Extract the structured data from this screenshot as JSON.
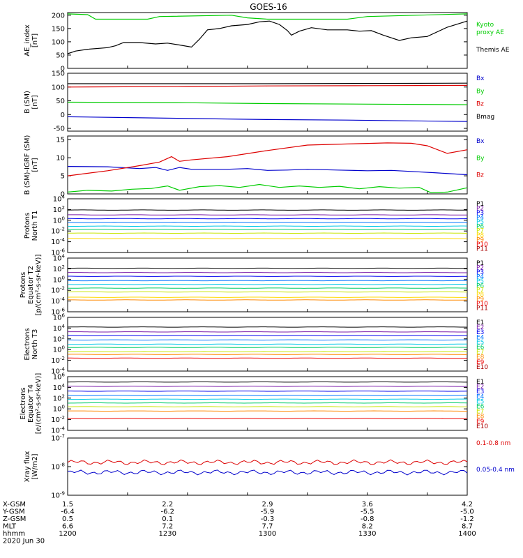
{
  "figure": {
    "title": "GOES-16",
    "date_label": "2020 Jun 30"
  },
  "colors": {
    "P1": "#000000",
    "P2": "#7a1aa8",
    "P3": "#0000ee",
    "P4": "#0077ff",
    "P5": "#00c8e6",
    "P6": "#00cc66",
    "P7": "#c8e600",
    "P8": "#ffd800",
    "P9": "#ff8800",
    "P10": "#ee0000",
    "P11": "#aa0000"
  },
  "chart_data": [
    {
      "type": "line",
      "panel": "ae",
      "ylabel": "AE_index\n[nT]",
      "ylim": [
        0,
        210
      ],
      "yticks": [
        0,
        50,
        100,
        150,
        200
      ],
      "x": [
        1200,
        1400
      ],
      "series": [
        {
          "name": "Kyoto\nproxy AE",
          "color": "#00cc00",
          "points": [
            [
              1200,
              205
            ],
            [
              1210,
              202
            ],
            [
              1214,
              185
            ],
            [
              1240,
              185
            ],
            [
              1246,
              195
            ],
            [
              1282,
              200
            ],
            [
              1290,
              190
            ],
            [
              1300,
              185
            ],
            [
              1340,
              185
            ],
            [
              1350,
              195
            ],
            [
              1375,
              200
            ],
            [
              1400,
              205
            ]
          ]
        },
        {
          "name": "Themis AE",
          "color": "#000000",
          "points": [
            [
              1200,
              55
            ],
            [
              1204,
              65
            ],
            [
              1210,
              72
            ],
            [
              1220,
              78
            ],
            [
              1224,
              85
            ],
            [
              1228,
              97
            ],
            [
              1236,
              97
            ],
            [
              1244,
              92
            ],
            [
              1250,
              95
            ],
            [
              1256,
              88
            ],
            [
              1262,
              80
            ],
            [
              1266,
              110
            ],
            [
              1270,
              145
            ],
            [
              1276,
              150
            ],
            [
              1282,
              160
            ],
            [
              1290,
              165
            ],
            [
              1296,
              175
            ],
            [
              1301,
              178
            ],
            [
              1306,
              165
            ],
            [
              1310,
              142
            ],
            [
              1312,
              125
            ],
            [
              1316,
              140
            ],
            [
              1322,
              153
            ],
            [
              1330,
              145
            ],
            [
              1340,
              145
            ],
            [
              1346,
              140
            ],
            [
              1352,
              142
            ],
            [
              1358,
              125
            ],
            [
              1362,
              115
            ],
            [
              1366,
              105
            ],
            [
              1372,
              115
            ],
            [
              1380,
              120
            ],
            [
              1390,
              155
            ],
            [
              1400,
              178
            ]
          ]
        }
      ]
    },
    {
      "type": "line",
      "panel": "b",
      "ylabel": "B (SM)\n[nT]",
      "ylim": [
        -60,
        150
      ],
      "yticks": [
        -50,
        0,
        50,
        100,
        150
      ],
      "x": [
        1200,
        1400
      ],
      "series": [
        {
          "name": "Bx",
          "color": "#0000cc",
          "points": [
            [
              1200,
              -8
            ],
            [
              1240,
              -12
            ],
            [
              1300,
              -18
            ],
            [
              1340,
              -20
            ],
            [
              1400,
              -25
            ]
          ]
        },
        {
          "name": "By",
          "color": "#00cc00",
          "points": [
            [
              1200,
              45
            ],
            [
              1260,
              43
            ],
            [
              1300,
              40
            ],
            [
              1350,
              38
            ],
            [
              1400,
              36
            ]
          ]
        },
        {
          "name": "Bz",
          "color": "#dd0000",
          "points": [
            [
              1200,
              100
            ],
            [
              1260,
              102
            ],
            [
              1300,
              104
            ],
            [
              1350,
              105
            ],
            [
              1400,
              106
            ]
          ]
        },
        {
          "name": "Bmag",
          "color": "#000000",
          "points": [
            [
              1200,
              112
            ],
            [
              1260,
              112
            ],
            [
              1300,
              112
            ],
            [
              1350,
              113
            ],
            [
              1400,
              114
            ]
          ]
        }
      ]
    },
    {
      "type": "line",
      "panel": "bdiff",
      "ylabel": "B (SM)-IGRF (SM)\n[nT]",
      "ylim": [
        0,
        16
      ],
      "yticks": [
        0,
        5,
        10,
        15
      ],
      "x": [
        1200,
        1400
      ],
      "series": [
        {
          "name": "Bx",
          "color": "#0000cc",
          "points": [
            [
              1200,
              7.6
            ],
            [
              1220,
              7.5
            ],
            [
              1236,
              7.0
            ],
            [
              1244,
              7.3
            ],
            [
              1250,
              6.5
            ],
            [
              1256,
              7.3
            ],
            [
              1262,
              6.8
            ],
            [
              1280,
              6.8
            ],
            [
              1290,
              7.0
            ],
            [
              1300,
              6.5
            ],
            [
              1310,
              6.6
            ],
            [
              1320,
              6.8
            ],
            [
              1335,
              6.6
            ],
            [
              1350,
              6.4
            ],
            [
              1362,
              6.5
            ],
            [
              1372,
              6.2
            ],
            [
              1385,
              5.8
            ],
            [
              1400,
              5.3
            ]
          ]
        },
        {
          "name": "By",
          "color": "#00cc00",
          "points": [
            [
              1200,
              0.5
            ],
            [
              1210,
              1.0
            ],
            [
              1222,
              0.8
            ],
            [
              1232,
              1.3
            ],
            [
              1242,
              1.5
            ],
            [
              1250,
              2.2
            ],
            [
              1256,
              1.0
            ],
            [
              1266,
              2.0
            ],
            [
              1276,
              2.3
            ],
            [
              1286,
              1.8
            ],
            [
              1296,
              2.6
            ],
            [
              1306,
              1.8
            ],
            [
              1316,
              2.2
            ],
            [
              1326,
              1.8
            ],
            [
              1336,
              2.1
            ],
            [
              1346,
              1.4
            ],
            [
              1356,
              2.0
            ],
            [
              1366,
              1.6
            ],
            [
              1376,
              1.8
            ],
            [
              1382,
              0.3
            ],
            [
              1390,
              0.5
            ],
            [
              1400,
              1.7
            ]
          ]
        },
        {
          "name": "Bz",
          "color": "#dd0000",
          "points": [
            [
              1200,
              5.0
            ],
            [
              1220,
              6.4
            ],
            [
              1236,
              7.8
            ],
            [
              1246,
              8.8
            ],
            [
              1252,
              10.3
            ],
            [
              1256,
              9.0
            ],
            [
              1262,
              9.4
            ],
            [
              1280,
              10.3
            ],
            [
              1300,
              12.0
            ],
            [
              1320,
              13.5
            ],
            [
              1340,
              13.8
            ],
            [
              1360,
              14.1
            ],
            [
              1372,
              14.0
            ],
            [
              1380,
              13.3
            ],
            [
              1390,
              11.2
            ],
            [
              1400,
              12.2
            ]
          ]
        }
      ]
    },
    {
      "type": "line",
      "panel": "prot_t1",
      "ylabel": "Protons\nNorth T1",
      "yscale": "log",
      "ylim": [
        -6,
        4
      ],
      "yticks": [
        4,
        2,
        0,
        -2,
        -4,
        -6
      ],
      "x": [
        1200,
        1400
      ],
      "series": [
        {
          "name": "P1",
          "color": "#000000",
          "levels": [
            1.9
          ]
        },
        {
          "name": "P2",
          "color": "#7a1aa8",
          "levels": [
            1.0
          ]
        },
        {
          "name": "P3",
          "color": "#0000ee",
          "levels": [
            0.3
          ]
        },
        {
          "name": "P4",
          "color": "#0077ff",
          "levels": [
            -0.4
          ]
        },
        {
          "name": "P5",
          "color": "#00c8e6",
          "levels": [
            -1.1
          ]
        },
        {
          "name": "P6",
          "color": "#00cc66",
          "levels": [
            -1.7
          ]
        },
        {
          "name": "P7",
          "color": "#c8e600",
          "levels": [
            -2.4
          ]
        },
        {
          "name": "P8",
          "color": "#ffd800",
          "levels": [
            -3.4
          ]
        },
        {
          "name": "P9",
          "color": "#ff8800"
        },
        {
          "name": "P10",
          "color": "#ee0000"
        },
        {
          "name": "P11",
          "color": "#aa0000"
        }
      ]
    },
    {
      "type": "line",
      "panel": "prot_t2",
      "ylabel": "Protons\nEquator T2\n[p/(cm²-s-sr-keV)]",
      "yscale": "log",
      "ylim": [
        -6,
        4
      ],
      "yticks": [
        4,
        2,
        0,
        -2,
        -4,
        -6
      ],
      "x": [
        1200,
        1400
      ],
      "series": [
        {
          "name": "P1",
          "color": "#000000",
          "levels": [
            2.1
          ]
        },
        {
          "name": "P2",
          "color": "#7a1aa8",
          "levels": [
            1.3
          ]
        },
        {
          "name": "P3",
          "color": "#0000ee",
          "levels": [
            0.6
          ]
        },
        {
          "name": "P4",
          "color": "#0077ff",
          "levels": [
            -0.2
          ]
        },
        {
          "name": "P5",
          "color": "#00c8e6",
          "levels": [
            -0.9
          ]
        },
        {
          "name": "P6",
          "color": "#00cc66",
          "levels": [
            -1.6
          ]
        },
        {
          "name": "P7",
          "color": "#c8e600",
          "levels": [
            -2.3
          ]
        },
        {
          "name": "P8",
          "color": "#ffd800",
          "levels": [
            -3.3
          ]
        },
        {
          "name": "P9",
          "color": "#ff8800",
          "levels": [
            -3.8
          ]
        },
        {
          "name": "P10",
          "color": "#ee0000"
        },
        {
          "name": "P11",
          "color": "#aa0000"
        }
      ]
    },
    {
      "type": "line",
      "panel": "elec_t3",
      "ylabel": "Electrons\nNorth T3",
      "yscale": "log",
      "ylim": [
        -4,
        6
      ],
      "yticks": [
        6,
        4,
        2,
        0,
        -2,
        -4
      ],
      "x": [
        1200,
        1400
      ],
      "series": [
        {
          "name": "E1",
          "color": "#000000",
          "levels": [
            4.2
          ]
        },
        {
          "name": "E2",
          "color": "#7a1aa8",
          "levels": [
            3.3
          ]
        },
        {
          "name": "E3",
          "color": "#0000ee",
          "levels": [
            2.6
          ]
        },
        {
          "name": "E4",
          "color": "#0077ff",
          "levels": [
            1.8
          ]
        },
        {
          "name": "E5",
          "color": "#00c8e6",
          "levels": [
            1.0
          ]
        },
        {
          "name": "E6",
          "color": "#00cc66",
          "levels": [
            0.4
          ]
        },
        {
          "name": "E7",
          "color": "#c8e600",
          "levels": [
            -0.4
          ]
        },
        {
          "name": "E8",
          "color": "#ff8800",
          "levels": [
            -0.9
          ]
        },
        {
          "name": "E9",
          "color": "#ee0000",
          "levels": [
            -1.6
          ]
        },
        {
          "name": "E10",
          "color": "#aa0000"
        }
      ]
    },
    {
      "type": "line",
      "panel": "elec_t4",
      "ylabel": "Electrons\nEquator T4\n[e/(cm²-s-sr-keV)]",
      "yscale": "log",
      "ylim": [
        -4,
        6
      ],
      "yticks": [
        6,
        4,
        2,
        0,
        -2,
        -4
      ],
      "x": [
        1200,
        1400
      ],
      "series": [
        {
          "name": "E1",
          "color": "#000000",
          "levels": [
            5.0
          ]
        },
        {
          "name": "E2",
          "color": "#7a1aa8",
          "levels": [
            4.2
          ]
        },
        {
          "name": "E3",
          "color": "#0000ee",
          "levels": [
            3.3
          ]
        },
        {
          "name": "E4",
          "color": "#0077ff",
          "levels": [
            2.5
          ]
        },
        {
          "name": "E5",
          "color": "#00c8e6",
          "levels": [
            1.8
          ]
        },
        {
          "name": "E6",
          "color": "#00cc66",
          "levels": [
            1.1
          ]
        },
        {
          "name": "E7",
          "color": "#c8e600",
          "levels": [
            0.4
          ]
        },
        {
          "name": "E8",
          "color": "#ff8800",
          "levels": [
            -0.4
          ]
        },
        {
          "name": "E9",
          "color": "#ee0000",
          "levels": [
            -1.8
          ]
        },
        {
          "name": "E10",
          "color": "#aa0000"
        }
      ]
    },
    {
      "type": "line",
      "panel": "xray",
      "ylabel": "Xray flux\n[W/m2]",
      "yscale": "log",
      "ylim": [
        -9,
        -7
      ],
      "yticks": [
        -7,
        -8,
        -9
      ],
      "x": [
        1200,
        1400
      ],
      "series": [
        {
          "name": "0.1-0.8 nm",
          "color": "#dd0000",
          "levels": [
            -7.85
          ]
        },
        {
          "name": "0.05-0.4 nm",
          "color": "#0000cc",
          "levels": [
            -8.2
          ]
        }
      ]
    }
  ],
  "axis_rows": {
    "labels": [
      "X-GSM",
      "Y-GSM",
      "Z-GSM",
      "MLT",
      "hhmm"
    ],
    "columns": [
      {
        "v": [
          "1.5",
          "-6.4",
          "0.5",
          "6.6",
          "1200"
        ]
      },
      {
        "v": [
          "2.2",
          "-6.2",
          "0.1",
          "7.2",
          "1230"
        ]
      },
      {
        "v": [
          "2.9",
          "-5.9",
          "-0.3",
          "7.7",
          "1300"
        ]
      },
      {
        "v": [
          "3.6",
          "-5.5",
          "-0.8",
          "8.2",
          "1330"
        ]
      },
      {
        "v": [
          "4.2",
          "-5.0",
          "-1.2",
          "8.7",
          "1400"
        ]
      }
    ]
  }
}
